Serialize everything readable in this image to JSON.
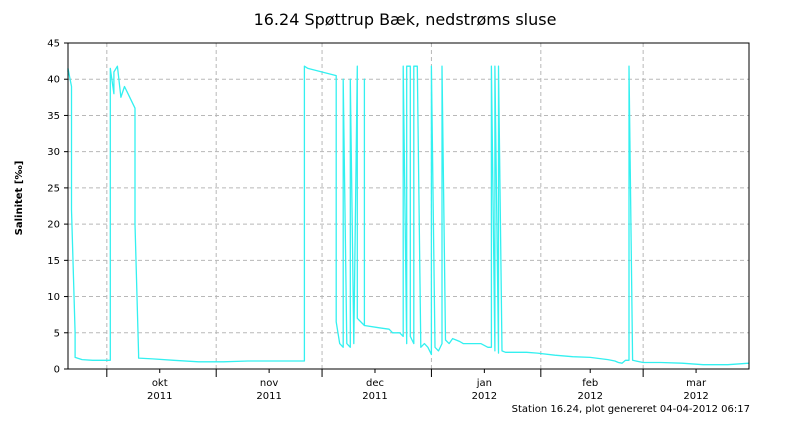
{
  "chart_data": {
    "type": "line",
    "title": "16.24 Spøttrup Bæk, nedstrøms sluse",
    "xlabel": "",
    "ylabel": "Salinitet [‰]",
    "footer": "Station 16.24, plot genereret 04-04-2012 06:17",
    "xlim": [
      "2011-09-20",
      "2012-03-31"
    ],
    "ylim": [
      0,
      45
    ],
    "yticks": [
      0,
      5,
      10,
      15,
      20,
      25,
      30,
      35,
      40,
      45
    ],
    "grid": true,
    "legend": "none",
    "line_color": "#33f0f0",
    "month_ticks": [
      {
        "month": "okt",
        "year": "2011",
        "date": "2011-10-01"
      },
      {
        "month": "nov",
        "year": "2011",
        "date": "2011-11-01"
      },
      {
        "month": "dec",
        "year": "2011",
        "date": "2011-12-01"
      },
      {
        "month": "jan",
        "year": "2012",
        "date": "2012-01-01"
      },
      {
        "month": "feb",
        "year": "2012",
        "date": "2012-02-01"
      },
      {
        "month": "mar",
        "year": "2012",
        "date": "2012-03-01"
      }
    ],
    "minor_tick_dates": [
      "2011-10-16",
      "2011-11-16",
      "2011-12-16",
      "2012-01-16",
      "2012-02-15",
      "2012-03-16"
    ],
    "series": [
      {
        "points": [
          [
            "2011-09-20",
            41.0
          ],
          [
            "2011-09-20",
            41.5
          ],
          [
            "2011-09-21",
            39.0
          ],
          [
            "2011-09-21",
            36.0
          ],
          [
            "2011-09-21",
            22.0
          ],
          [
            "2011-09-22",
            5.0
          ],
          [
            "2011-09-22",
            1.6
          ],
          [
            "2011-09-24",
            1.3
          ],
          [
            "2011-09-27",
            1.2
          ],
          [
            "2011-09-30",
            1.2
          ],
          [
            "2011-10-02",
            1.2
          ],
          [
            "2011-10-02",
            41.5
          ],
          [
            "2011-10-03",
            38.0
          ],
          [
            "2011-10-03",
            41.0
          ],
          [
            "2011-10-04",
            41.8
          ],
          [
            "2011-10-05",
            37.5
          ],
          [
            "2011-10-06",
            39.0
          ],
          [
            "2011-10-07",
            38.0
          ],
          [
            "2011-10-09",
            36.0
          ],
          [
            "2011-10-09",
            20.0
          ],
          [
            "2011-10-10",
            2.0
          ],
          [
            "2011-10-10",
            1.5
          ],
          [
            "2011-10-14",
            1.4
          ],
          [
            "2011-10-20",
            1.2
          ],
          [
            "2011-10-27",
            1.0
          ],
          [
            "2011-11-03",
            1.0
          ],
          [
            "2011-11-10",
            1.1
          ],
          [
            "2011-11-18",
            1.1
          ],
          [
            "2011-11-25",
            1.1
          ],
          [
            "2011-11-26",
            1.1
          ],
          [
            "2011-11-26",
            35.0
          ],
          [
            "2011-11-26",
            41.8
          ],
          [
            "2011-11-27",
            41.5
          ],
          [
            "2011-11-27",
            41.5
          ],
          [
            "2011-12-05",
            40.5
          ],
          [
            "2011-12-05",
            6.5
          ],
          [
            "2011-12-06",
            3.5
          ],
          [
            "2011-12-07",
            3.0
          ],
          [
            "2011-12-07",
            40.0
          ],
          [
            "2011-12-08",
            3.5
          ],
          [
            "2011-12-09",
            3.0
          ],
          [
            "2011-12-09",
            40.0
          ],
          [
            "2011-12-10",
            3.5
          ],
          [
            "2011-12-11",
            41.8
          ],
          [
            "2011-12-11",
            7.0
          ],
          [
            "2011-12-13",
            6.0
          ],
          [
            "2011-12-13",
            40.0
          ],
          [
            "2011-12-13",
            6.0
          ],
          [
            "2011-12-17",
            5.7
          ],
          [
            "2011-12-20",
            5.5
          ],
          [
            "2011-12-21",
            5.0
          ],
          [
            "2011-12-23",
            5.0
          ],
          [
            "2011-12-24",
            4.5
          ],
          [
            "2011-12-24",
            37.0
          ],
          [
            "2011-12-24",
            41.8
          ],
          [
            "2011-12-25",
            3.5
          ],
          [
            "2011-12-25",
            41.8
          ],
          [
            "2011-12-26",
            41.8
          ],
          [
            "2011-12-26",
            4.5
          ],
          [
            "2011-12-27",
            3.5
          ],
          [
            "2011-12-27",
            41.8
          ],
          [
            "2011-12-28",
            41.8
          ],
          [
            "2011-12-29",
            3.0
          ],
          [
            "2011-12-30",
            3.5
          ],
          [
            "2011-12-31",
            3.0
          ],
          [
            "2012-01-01",
            2.0
          ],
          [
            "2012-01-01",
            41.8
          ],
          [
            "2012-01-02",
            3.0
          ],
          [
            "2012-01-03",
            2.5
          ],
          [
            "2012-01-04",
            3.5
          ],
          [
            "2012-01-04",
            41.8
          ],
          [
            "2012-01-05",
            4.0
          ],
          [
            "2012-01-06",
            3.5
          ],
          [
            "2012-01-07",
            4.2
          ],
          [
            "2012-01-08",
            4.0
          ],
          [
            "2012-01-09",
            3.8
          ],
          [
            "2012-01-10",
            3.5
          ],
          [
            "2012-01-12",
            3.5
          ],
          [
            "2012-01-15",
            3.5
          ],
          [
            "2012-01-17",
            3.0
          ],
          [
            "2012-01-18",
            3.0
          ],
          [
            "2012-01-18",
            41.8
          ],
          [
            "2012-01-19",
            2.5
          ],
          [
            "2012-01-19",
            41.8
          ],
          [
            "2012-01-20",
            2.2
          ],
          [
            "2012-01-20",
            41.8
          ],
          [
            "2012-01-21",
            2.5
          ],
          [
            "2012-01-22",
            2.3
          ],
          [
            "2012-01-25",
            2.3
          ],
          [
            "2012-01-28",
            2.3
          ],
          [
            "2012-01-31",
            2.2
          ],
          [
            "2012-02-05",
            1.9
          ],
          [
            "2012-02-10",
            1.7
          ],
          [
            "2012-02-15",
            1.6
          ],
          [
            "2012-02-20",
            1.3
          ],
          [
            "2012-02-22",
            1.1
          ],
          [
            "2012-02-23",
            0.9
          ],
          [
            "2012-02-24",
            0.8
          ],
          [
            "2012-02-25",
            1.2
          ],
          [
            "2012-02-26",
            1.2
          ],
          [
            "2012-02-26",
            41.8
          ],
          [
            "2012-02-27",
            1.2
          ],
          [
            "2012-03-01",
            0.9
          ],
          [
            "2012-03-06",
            0.9
          ],
          [
            "2012-03-12",
            0.8
          ],
          [
            "2012-03-18",
            0.6
          ],
          [
            "2012-03-25",
            0.6
          ],
          [
            "2012-03-31",
            0.8
          ]
        ]
      }
    ]
  }
}
